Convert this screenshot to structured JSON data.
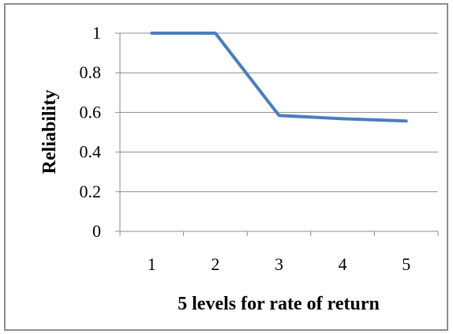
{
  "chart_data": {
    "type": "line",
    "title": "",
    "xlabel": "5 levels for rate of return",
    "ylabel": "Reliability",
    "x": [
      "1",
      "2",
      "3",
      "4",
      "5"
    ],
    "series": [
      {
        "values": [
          1.0,
          1.0,
          0.585,
          0.568,
          0.557
        ]
      }
    ],
    "ylim": [
      0,
      1
    ],
    "yticks": [
      "0",
      "0.2",
      "0.4",
      "0.6",
      "0.8",
      "1"
    ],
    "grid": "horizontal",
    "legend": "none",
    "colors": {
      "line": "#4a7ebb",
      "grid": "#8c8c8c",
      "axis": "#8c8c8c"
    }
  }
}
